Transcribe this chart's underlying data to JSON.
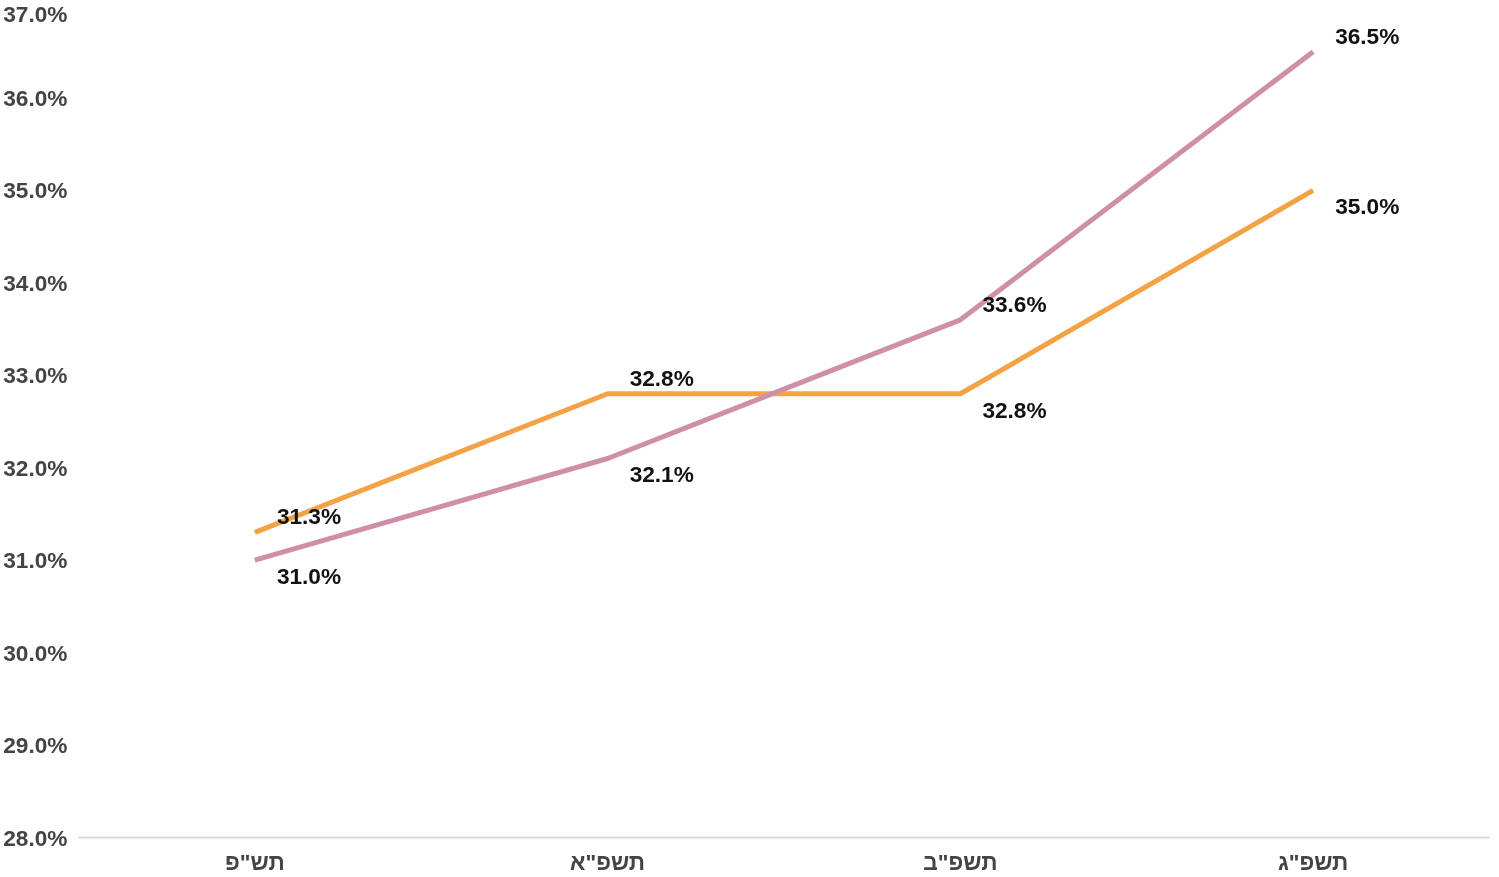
{
  "chart_data": {
    "type": "line",
    "categories": [
      "תש\"פ",
      "תשפ\"א",
      "תשפ\"ב",
      "תשפ\"ג"
    ],
    "series": [
      {
        "color": "#f4a246",
        "values": [
          31.3,
          32.8,
          32.8,
          35.0
        ],
        "value_labels": [
          "31.3%",
          "32.8%",
          "32.8%",
          "35.0%"
        ]
      },
      {
        "color": "#d08fa8",
        "values": [
          31.0,
          32.1,
          33.6,
          36.5
        ],
        "value_labels": [
          "31.0%",
          "32.1%",
          "33.6%",
          "36.5%"
        ]
      }
    ],
    "ylim": [
      28,
      37
    ],
    "yticks": [
      {
        "value": 28,
        "label": "28.0%"
      },
      {
        "value": 29,
        "label": "29.0%"
      },
      {
        "value": 30,
        "label": "30.0%"
      },
      {
        "value": 31,
        "label": "31.0%"
      },
      {
        "value": 32,
        "label": "32.0%"
      },
      {
        "value": 33,
        "label": "33.0%"
      },
      {
        "value": 34,
        "label": "34.0%"
      },
      {
        "value": 35,
        "label": "35.0%"
      },
      {
        "value": 36,
        "label": "36.0%"
      },
      {
        "value": 37,
        "label": "37.0%"
      }
    ],
    "grid": false,
    "marker": "none",
    "line_style": "solid"
  }
}
